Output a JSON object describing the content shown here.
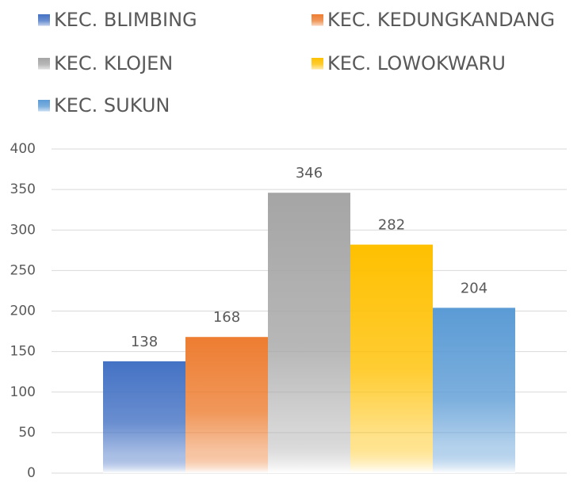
{
  "chart_data": {
    "type": "bar",
    "categories": [
      null
    ],
    "series": [
      {
        "name": "KEC. BLIMBING",
        "color": "#4472c4",
        "values": [
          138
        ]
      },
      {
        "name": "KEC. KEDUNGKANDANG",
        "color": "#ed7d31",
        "values": [
          168
        ]
      },
      {
        "name": "KEC. KLOJEN",
        "color": "#a5a5a5",
        "values": [
          346
        ]
      },
      {
        "name": "KEC. LOWOKWARU",
        "color": "#ffc000",
        "values": [
          282
        ]
      },
      {
        "name": "KEC. SUKUN",
        "color": "#5b9bd5",
        "values": [
          204
        ]
      }
    ],
    "ylim": [
      0,
      400
    ],
    "yticks": [
      0,
      50,
      100,
      150,
      200,
      250,
      300,
      350,
      400
    ],
    "grid": true,
    "legend": "top"
  }
}
